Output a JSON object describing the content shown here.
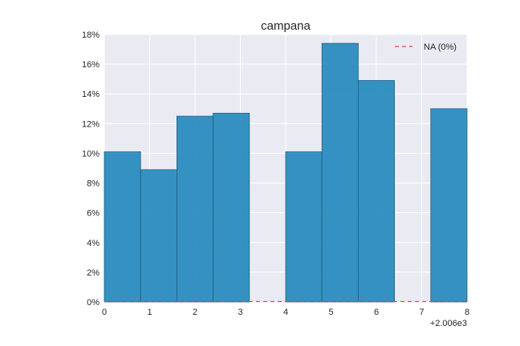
{
  "chart_data": {
    "type": "bar",
    "title": "campana",
    "xlabel": "",
    "ylabel": "",
    "x_offset_label": "+2.006e3",
    "xlim": [
      0,
      8
    ],
    "ylim": [
      0,
      18
    ],
    "x_ticks": [
      "0",
      "1",
      "2",
      "3",
      "4",
      "5",
      "6",
      "7",
      "8"
    ],
    "y_ticks": [
      "0%",
      "2%",
      "4%",
      "6%",
      "8%",
      "10%",
      "12%",
      "14%",
      "16%",
      "18%"
    ],
    "bins": [
      {
        "start": 0.0,
        "end": 0.8,
        "value": 10.1
      },
      {
        "start": 0.8,
        "end": 1.6,
        "value": 8.9
      },
      {
        "start": 1.6,
        "end": 2.4,
        "value": 12.5
      },
      {
        "start": 2.4,
        "end": 3.2,
        "value": 12.7
      },
      {
        "start": 3.2,
        "end": 4.0,
        "value": 0
      },
      {
        "start": 4.0,
        "end": 4.8,
        "value": 10.1
      },
      {
        "start": 4.8,
        "end": 5.6,
        "value": 17.4
      },
      {
        "start": 5.6,
        "end": 6.4,
        "value": 14.9
      },
      {
        "start": 6.4,
        "end": 7.2,
        "value": 0
      },
      {
        "start": 7.2,
        "end": 8.0,
        "value": 13.0
      }
    ],
    "na_series": {
      "name": "NA (0%)",
      "value": 0,
      "color": "#e24a33",
      "style": "dashed"
    },
    "legend": {
      "position": "top-right",
      "entries": [
        "NA (0%)"
      ]
    },
    "grid": true,
    "colors": {
      "bar": "#2b8cbe",
      "bar_edge": "#1f5f80",
      "background": "#eaeaf2",
      "grid": "#ffffff",
      "text": "#262626"
    }
  }
}
